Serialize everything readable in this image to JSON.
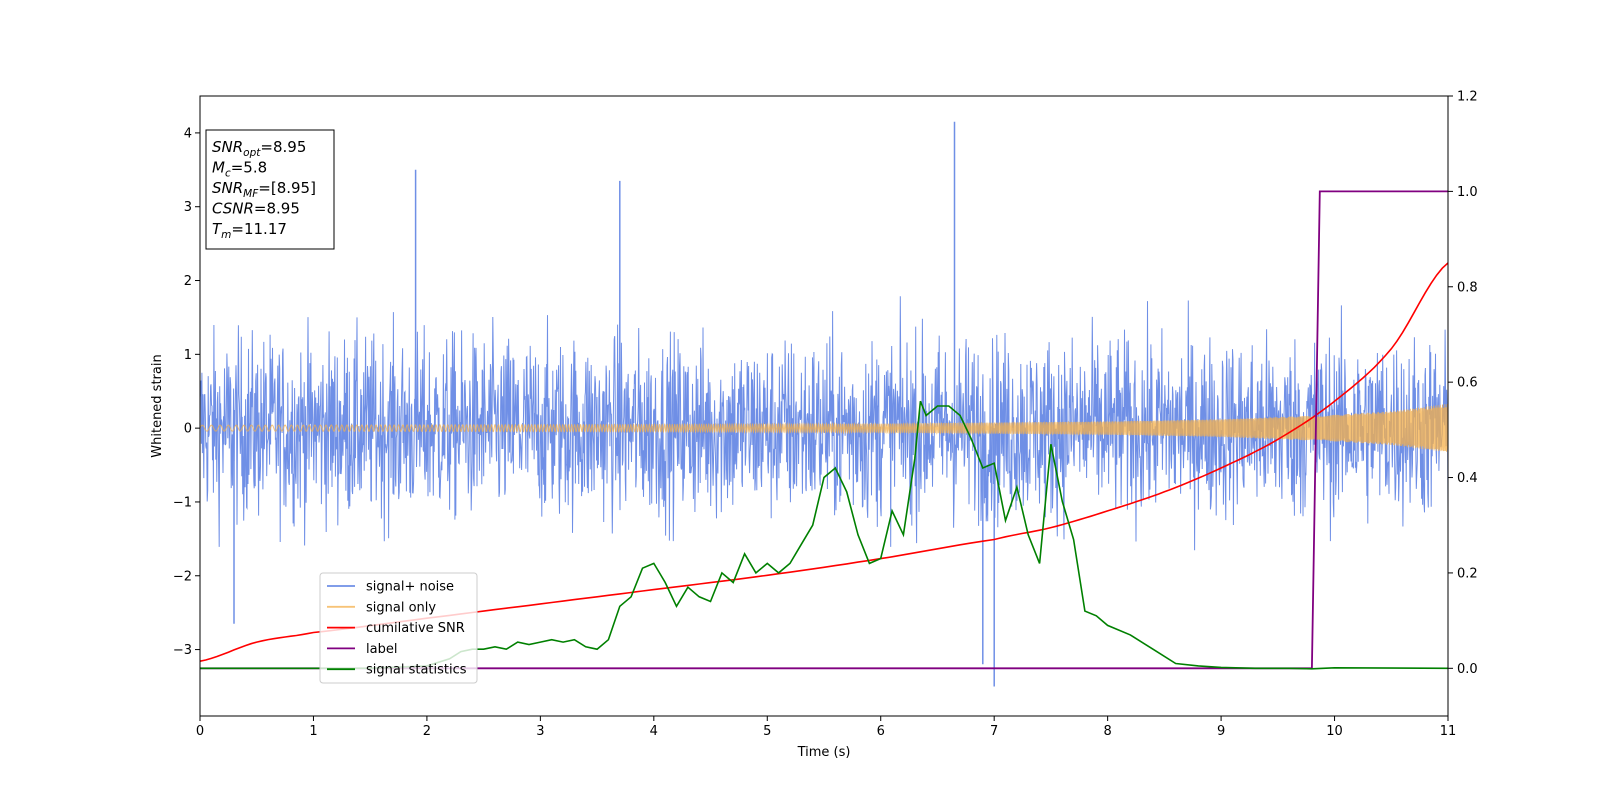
{
  "chart_data": {
    "type": "line",
    "xlabel": "Time (s)",
    "ylabel": "Whitened strain",
    "xlim": [
      0,
      11
    ],
    "ylim_left": [
      -3.9,
      4.5
    ],
    "ylim_right": [
      -0.1,
      1.2
    ],
    "x_ticks": [
      0,
      1,
      2,
      3,
      4,
      5,
      6,
      7,
      8,
      9,
      10,
      11
    ],
    "y_ticks_left": [
      -3,
      -2,
      -1,
      0,
      1,
      2,
      3,
      4
    ],
    "y_ticks_right": [
      0.0,
      0.2,
      0.4,
      0.6,
      0.8,
      1.0,
      1.2
    ],
    "grid": false,
    "legend_position": "lower-left",
    "stats": [
      {
        "name": "SNR",
        "sub": "opt",
        "value": "=8.95"
      },
      {
        "name": "M",
        "sub": "c",
        "value": "=5.8"
      },
      {
        "name": "SNR",
        "sub": "MF",
        "value": "=[8.95]"
      },
      {
        "name": "CSNR",
        "sub": "",
        "value": "=8.95"
      },
      {
        "name": "T",
        "sub": "m",
        "value": "=11.17"
      }
    ],
    "series": [
      {
        "name": "signal+ noise",
        "axis": "left",
        "color": "#6f8fe6",
        "note_peaks": [
          {
            "x": 1.9,
            "y": 3.5
          },
          {
            "x": 3.7,
            "y": 3.35
          },
          {
            "x": 6.65,
            "y": 4.15
          },
          {
            "x": 7.0,
            "y": -3.5
          },
          {
            "x": 6.9,
            "y": -3.2
          },
          {
            "x": 0.3,
            "y": -2.65
          }
        ]
      },
      {
        "name": "signal only",
        "axis": "left",
        "color": "#f5b04a",
        "envelope_x": [
          0,
          2,
          4,
          6,
          8,
          9,
          10,
          10.5,
          11
        ],
        "envelope_y": [
          0.04,
          0.045,
          0.05,
          0.06,
          0.09,
          0.12,
          0.18,
          0.23,
          0.33
        ]
      },
      {
        "name": "cumilative SNR",
        "axis": "right",
        "color": "#ff0000",
        "x": [
          0,
          0.5,
          1,
          2,
          3,
          4,
          5,
          6,
          7,
          7.5,
          8,
          8.5,
          9,
          9.5,
          10,
          10.5,
          11
        ],
        "y": [
          0.015,
          0.055,
          0.075,
          0.105,
          0.135,
          0.165,
          0.195,
          0.23,
          0.27,
          0.295,
          0.33,
          0.37,
          0.42,
          0.48,
          0.56,
          0.67,
          0.85
        ]
      },
      {
        "name": "label",
        "axis": "right",
        "color": "#800080",
        "x": [
          0,
          9.8,
          9.87,
          11
        ],
        "y": [
          0,
          0,
          1,
          1
        ]
      },
      {
        "name": "signal statistics",
        "axis": "right",
        "color": "#008000",
        "x": [
          0,
          0.5,
          1,
          1.5,
          2,
          2.2,
          2.3,
          2.4,
          2.5,
          2.6,
          2.7,
          2.8,
          2.9,
          3.0,
          3.1,
          3.2,
          3.3,
          3.4,
          3.5,
          3.6,
          3.7,
          3.8,
          3.9,
          4.0,
          4.05,
          4.1,
          4.2,
          4.3,
          4.4,
          4.5,
          4.6,
          4.7,
          4.8,
          4.9,
          5.0,
          5.1,
          5.2,
          5.3,
          5.4,
          5.5,
          5.6,
          5.7,
          5.8,
          5.9,
          6.0,
          6.1,
          6.2,
          6.3,
          6.35,
          6.4,
          6.5,
          6.6,
          6.7,
          6.8,
          6.9,
          7.0,
          7.1,
          7.2,
          7.3,
          7.4,
          7.5,
          7.6,
          7.7,
          7.8,
          7.9,
          8.0,
          8.2,
          8.4,
          8.6,
          8.8,
          9.0,
          9.3,
          9.6,
          9.8,
          10.0,
          11
        ],
        "y": [
          0.0,
          0.0,
          0.0,
          0.0,
          0.005,
          0.02,
          0.035,
          0.04,
          0.04,
          0.045,
          0.04,
          0.055,
          0.05,
          0.055,
          0.06,
          0.055,
          0.06,
          0.045,
          0.04,
          0.06,
          0.13,
          0.15,
          0.21,
          0.22,
          0.2,
          0.18,
          0.13,
          0.17,
          0.15,
          0.14,
          0.2,
          0.18,
          0.24,
          0.2,
          0.22,
          0.2,
          0.22,
          0.26,
          0.3,
          0.4,
          0.42,
          0.37,
          0.28,
          0.22,
          0.23,
          0.33,
          0.28,
          0.44,
          0.56,
          0.53,
          0.55,
          0.55,
          0.53,
          0.48,
          0.42,
          0.43,
          0.31,
          0.38,
          0.28,
          0.22,
          0.47,
          0.35,
          0.27,
          0.12,
          0.11,
          0.09,
          0.07,
          0.04,
          0.01,
          0.005,
          0.002,
          0.0,
          0.0,
          -0.001,
          0.001,
          0.0
        ]
      }
    ]
  }
}
